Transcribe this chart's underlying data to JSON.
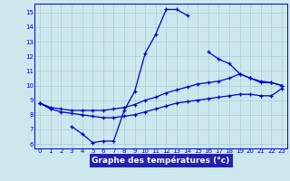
{
  "title": "Graphe des températures (°c)",
  "background_color": "#cce8ec",
  "xlabel_bg": "#2222aa",
  "xlabel_color": "#ffffff",
  "grid_color": "#aaccd4",
  "line_color": "#0000cc",
  "xlim": [
    -0.5,
    23.5
  ],
  "ylim": [
    5.7,
    15.6
  ],
  "yticks": [
    6,
    7,
    8,
    9,
    10,
    11,
    12,
    13,
    14,
    15
  ],
  "xticks": [
    0,
    1,
    2,
    3,
    4,
    5,
    6,
    7,
    8,
    9,
    10,
    11,
    12,
    13,
    14,
    15,
    16,
    17,
    18,
    19,
    20,
    21,
    22,
    23
  ],
  "hours": [
    0,
    1,
    2,
    3,
    4,
    5,
    6,
    7,
    8,
    9,
    10,
    11,
    12,
    13,
    14,
    15,
    16,
    17,
    18,
    19,
    20,
    21,
    22,
    23
  ],
  "series_upper": [
    8.8,
    8.5,
    8.4,
    8.3,
    8.3,
    8.3,
    8.3,
    8.4,
    8.5,
    8.7,
    9.0,
    9.2,
    9.5,
    9.7,
    9.9,
    10.1,
    10.2,
    10.3,
    10.5,
    10.8,
    10.5,
    10.3,
    10.2,
    10.0
  ],
  "series_lower": [
    8.8,
    8.4,
    8.2,
    8.1,
    8.0,
    7.9,
    7.8,
    7.8,
    7.9,
    8.0,
    8.2,
    8.4,
    8.6,
    8.8,
    8.9,
    9.0,
    9.1,
    9.2,
    9.3,
    9.4,
    9.4,
    9.3,
    9.3,
    9.8
  ],
  "series_day": [
    8.8,
    8.4,
    null,
    7.2,
    6.7,
    6.1,
    6.2,
    6.2,
    8.3,
    9.6,
    12.2,
    13.5,
    15.2,
    15.2,
    14.8,
    null,
    12.3,
    11.8,
    11.5,
    10.8,
    10.5,
    10.2,
    10.2,
    10.0
  ]
}
